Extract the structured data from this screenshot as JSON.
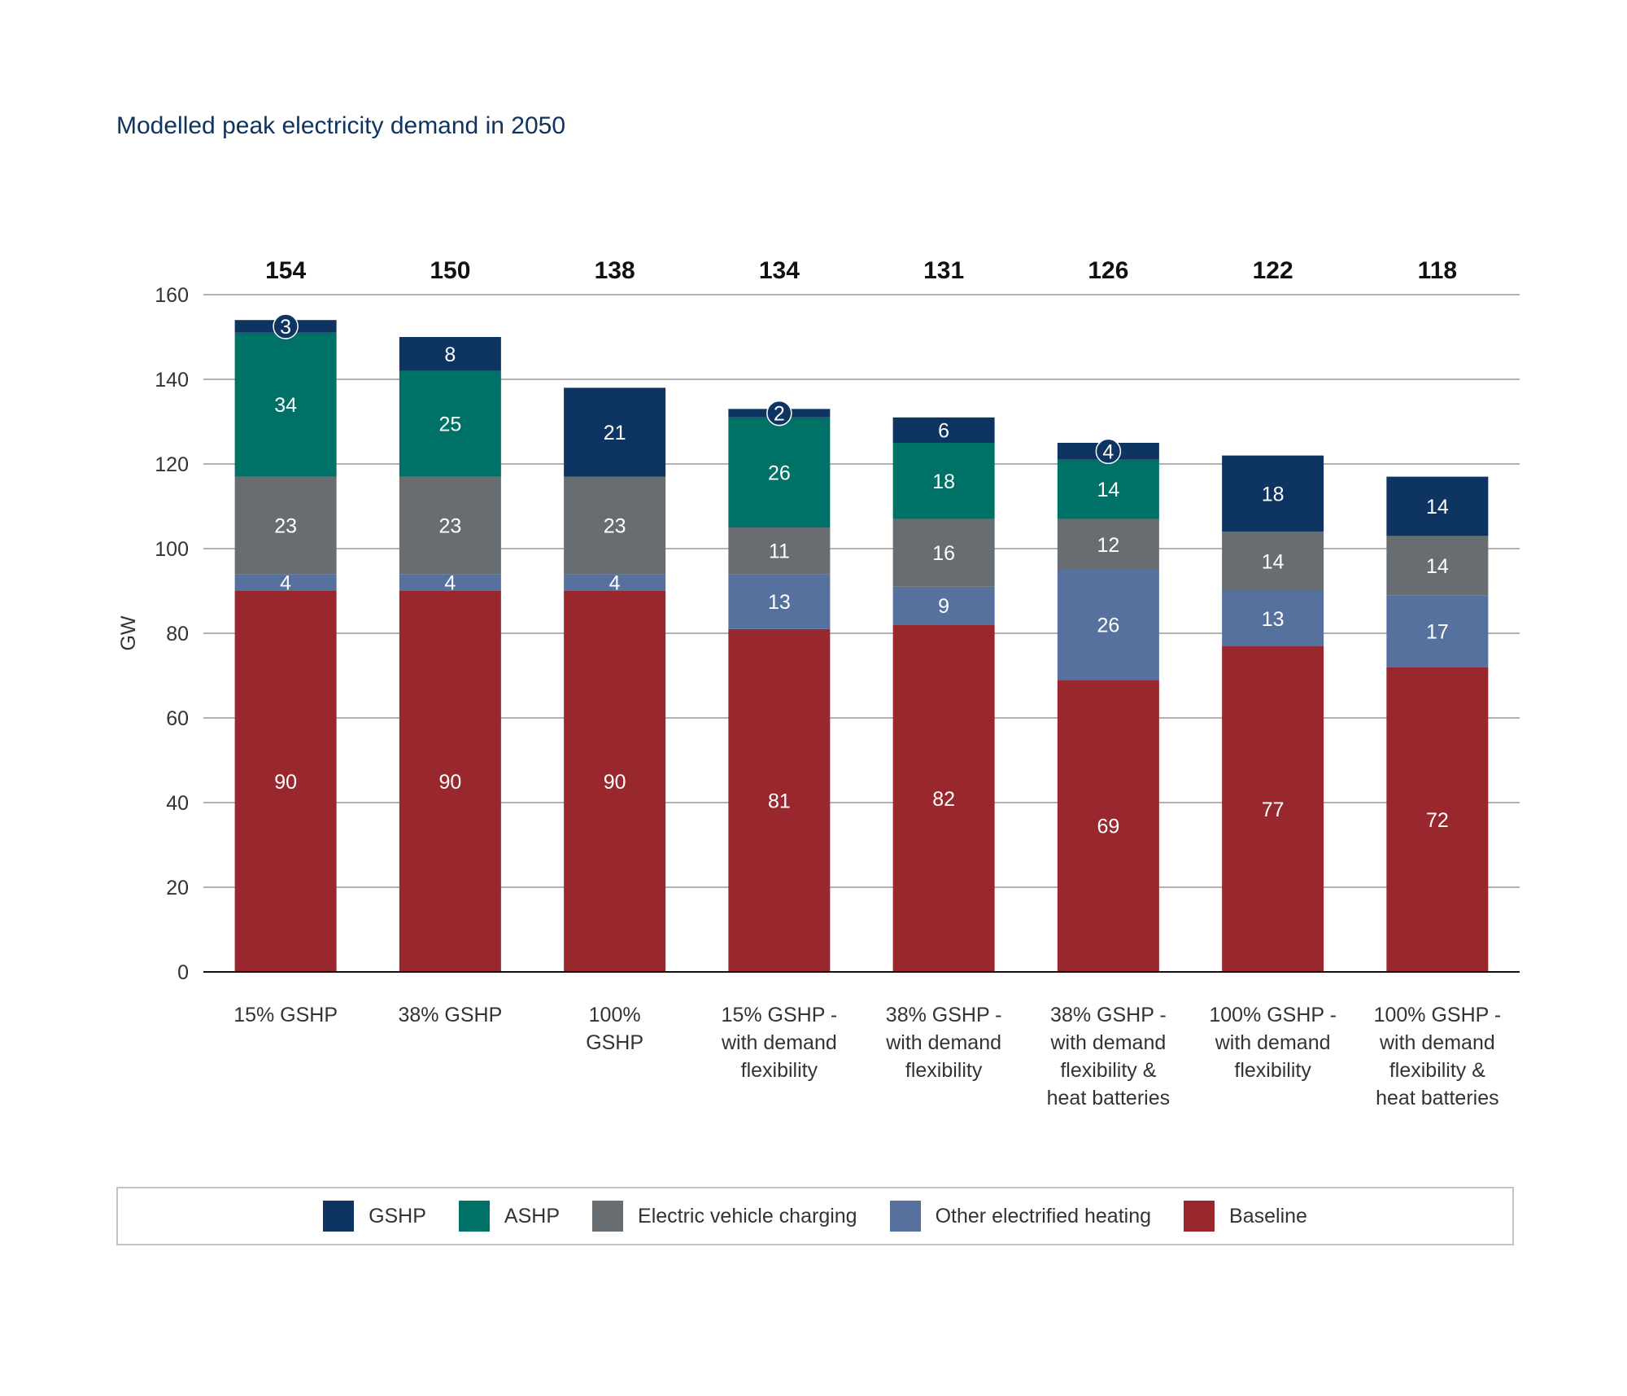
{
  "chart_data": {
    "type": "bar",
    "stacked": true,
    "title": "Modelled peak electricity demand in 2050",
    "xlabel": "",
    "ylabel": "GW",
    "ylim": [
      0,
      160
    ],
    "yticks": [
      0,
      20,
      40,
      60,
      80,
      100,
      120,
      140,
      160
    ],
    "grid": true,
    "legend_position": "bottom",
    "categories": [
      "15% GSHP",
      "38% GSHP",
      "100% GSHP",
      "15% GSHP - with demand flexibility",
      "38% GSHP - with demand flexibility",
      "38% GSHP - with demand flexibility & heat batteries",
      "100% GSHP - with demand flexibility",
      "100% GSHP - with demand flexibility & heat batteries"
    ],
    "category_lines": [
      [
        "15% GSHP"
      ],
      [
        "38% GSHP"
      ],
      [
        "100%",
        "GSHP"
      ],
      [
        "15% GSHP -",
        "with demand",
        "flexibility"
      ],
      [
        "38% GSHP -",
        "with demand",
        "flexibility"
      ],
      [
        "38% GSHP -",
        "with demand",
        "flexibility &",
        "heat batteries"
      ],
      [
        "100% GSHP -",
        "with demand",
        "flexibility"
      ],
      [
        "100% GSHP -",
        "with demand",
        "flexibility &",
        "heat batteries"
      ]
    ],
    "totals": [
      154,
      150,
      138,
      134,
      131,
      126,
      122,
      118
    ],
    "series": [
      {
        "name": "Baseline",
        "color": "#98272e",
        "values": [
          90,
          90,
          90,
          81,
          82,
          69,
          77,
          72
        ]
      },
      {
        "name": "Other electrified heating",
        "color": "#57719f",
        "values": [
          4,
          4,
          4,
          13,
          9,
          26,
          13,
          17
        ]
      },
      {
        "name": "Electric vehicle charging",
        "color": "#686d72",
        "values": [
          23,
          23,
          23,
          11,
          16,
          12,
          14,
          14
        ]
      },
      {
        "name": "ASHP",
        "color": "#007167",
        "values": [
          34,
          25,
          null,
          26,
          18,
          14,
          null,
          null
        ]
      },
      {
        "name": "GSHP",
        "color": "#0e3461",
        "values": [
          3,
          8,
          21,
          2,
          6,
          4,
          18,
          14
        ]
      }
    ],
    "legend_order": [
      "GSHP",
      "ASHP",
      "Electric vehicle charging",
      "Other electrified heating",
      "Baseline"
    ]
  }
}
